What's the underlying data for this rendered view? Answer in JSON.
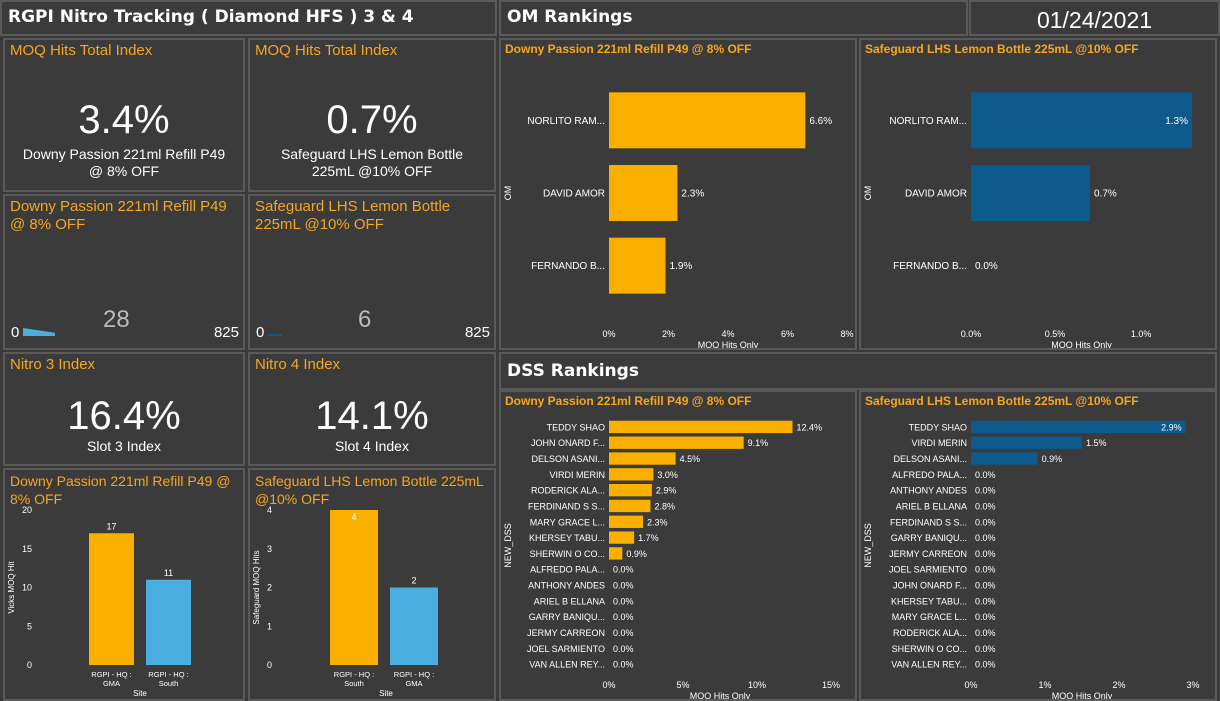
{
  "header": {
    "title": "RGPI Nitro Tracking ( Diamond HFS ) 3 & 4",
    "om_title": "OM Rankings",
    "date": "01/24/2021",
    "dss_title": "DSS Rankings"
  },
  "kpi": {
    "moq1": {
      "title": "MOQ Hits Total Index",
      "value": "3.4%",
      "sub1": "Downy Passion 221ml Refill P49",
      "sub2": "@ 8% OFF"
    },
    "moq2": {
      "title": "MOQ Hits Total Index",
      "value": "0.7%",
      "sub1": "Safeguard LHS Lemon Bottle",
      "sub2": "225mL @10% OFF"
    },
    "gauge1": {
      "title1": "Downy Passion 221ml Refill P49",
      "title2": "@ 8% OFF",
      "min": "0",
      "value": "28",
      "max": "825",
      "fraction": 0.034
    },
    "gauge2": {
      "title1": "Safeguard LHS Lemon Bottle",
      "title2": "225mL @10% OFF",
      "min": "0",
      "value": "6",
      "max": "825",
      "fraction": 0.007
    },
    "nitro3": {
      "title": "Nitro 3 Index",
      "value": "16.4%",
      "sub": "Slot 3 Index"
    },
    "nitro4": {
      "title": "Nitro 4 Index",
      "value": "14.1%",
      "sub": "Slot 4 Index"
    }
  },
  "colors": {
    "orange": "#fbb000",
    "lightblue": "#4aaee0",
    "darkblue": "#0d5a8c",
    "title_orange": "#f5a623"
  },
  "chart_data": [
    {
      "id": "site1",
      "type": "bar",
      "title": "Downy Passion 221ml Refill P49 @ 8% OFF",
      "categories": [
        "RGPI - HQ : GMA",
        "RGPI - HQ : South"
      ],
      "values": [
        17,
        11
      ],
      "xlabel": "Site",
      "ylabel": "Vicks MOQ Hit",
      "ylim": [
        0,
        20
      ],
      "yticks": [
        0,
        5,
        10,
        15,
        20
      ]
    },
    {
      "id": "site2",
      "type": "bar",
      "title": "Safeguard LHS Lemon Bottle 225mL @10% OFF",
      "categories": [
        "RGPI - HQ : South",
        "RGPI - HQ : GMA"
      ],
      "values": [
        4,
        2
      ],
      "xlabel": "Site",
      "ylabel": "Safeguard MOQ Hits",
      "ylim": [
        0,
        4
      ],
      "yticks": [
        0,
        1,
        2,
        3,
        4
      ]
    },
    {
      "id": "om1",
      "type": "bar",
      "orientation": "horizontal",
      "title": "Downy Passion 221ml Refill P49 @ 8% OFF",
      "categories": [
        "NORLITO RAM...",
        "DAVID AMOR",
        "FERNANDO B..."
      ],
      "values": [
        6.6,
        2.3,
        1.9
      ],
      "labels": [
        "6.6%",
        "2.3%",
        "1.9%"
      ],
      "xlabel": "MOQ Hits Only",
      "ylabel": "OM",
      "xlim": [
        0,
        8
      ],
      "xticks": [
        "0%",
        "2%",
        "4%",
        "6%",
        "8%"
      ]
    },
    {
      "id": "om2",
      "type": "bar",
      "orientation": "horizontal",
      "title": "Safeguard LHS Lemon Bottle 225mL @10% OFF",
      "categories": [
        "NORLITO RAM...",
        "DAVID AMOR",
        "FERNANDO B..."
      ],
      "values": [
        1.3,
        0.7,
        0.0
      ],
      "labels": [
        "1.3%",
        "0.7%",
        "0.0%"
      ],
      "xlabel": "MOQ Hits Only",
      "ylabel": "OM",
      "xlim": [
        0,
        1.3
      ],
      "xticks": [
        "0.0%",
        "0.5%",
        "1.0%"
      ]
    },
    {
      "id": "dss1",
      "type": "bar",
      "orientation": "horizontal",
      "title": "Downy Passion 221ml Refill P49 @ 8% OFF",
      "categories": [
        "TEDDY SHAO",
        "JOHN ONARD F...",
        "DELSON ASANI...",
        "VIRDI MERIN",
        "RODERICK ALA...",
        "FERDINAND S S...",
        "MARY GRACE L...",
        "KHERSEY TABU...",
        "SHERWIN O CO...",
        "ALFREDO PALA...",
        "ANTHONY ANDES",
        "ARIEL B ELLANA",
        "GARRY BANIQU...",
        "JERMY CARREON",
        "JOEL SARMIENTO",
        "VAN ALLEN REY..."
      ],
      "values": [
        12.4,
        9.1,
        4.5,
        3.0,
        2.9,
        2.8,
        2.3,
        1.7,
        0.9,
        0.0,
        0.0,
        0.0,
        0.0,
        0.0,
        0.0,
        0.0
      ],
      "labels": [
        "12.4%",
        "9.1%",
        "4.5%",
        "3.0%",
        "2.9%",
        "2.8%",
        "2.3%",
        "1.7%",
        "0.9%",
        "0.0%",
        "0.0%",
        "0.0%",
        "0.0%",
        "0.0%",
        "0.0%",
        "0.0%"
      ],
      "xlabel": "MOQ Hits Only",
      "ylabel": "NEW_DSS",
      "xlim": [
        0,
        15
      ],
      "xticks": [
        "0%",
        "5%",
        "10%",
        "15%"
      ]
    },
    {
      "id": "dss2",
      "type": "bar",
      "orientation": "horizontal",
      "title": "Safeguard LHS Lemon Bottle 225mL @10% OFF",
      "categories": [
        "TEDDY SHAO",
        "VIRDI MERIN",
        "DELSON ASANI...",
        "ALFREDO PALA...",
        "ANTHONY ANDES",
        "ARIEL B ELLANA",
        "FERDINAND S S...",
        "GARRY BANIQU...",
        "JERMY CARREON",
        "JOEL SARMIENTO",
        "JOHN ONARD F...",
        "KHERSEY TABU...",
        "MARY GRACE L...",
        "RODERICK ALA...",
        "SHERWIN O CO...",
        "VAN ALLEN REY..."
      ],
      "values": [
        2.9,
        1.5,
        0.9,
        0.0,
        0.0,
        0.0,
        0.0,
        0.0,
        0.0,
        0.0,
        0.0,
        0.0,
        0.0,
        0.0,
        0.0,
        0.0
      ],
      "labels": [
        "2.9%",
        "1.5%",
        "0.9%",
        "0.0%",
        "0.0%",
        "0.0%",
        "0.0%",
        "0.0%",
        "0.0%",
        "0.0%",
        "0.0%",
        "0.0%",
        "0.0%",
        "0.0%",
        "0.0%",
        "0.0%"
      ],
      "xlabel": "MOQ Hits Only",
      "ylabel": "NEW_DSS",
      "xlim": [
        0,
        3
      ],
      "xticks": [
        "0%",
        "1%",
        "2%",
        "3%"
      ]
    }
  ]
}
